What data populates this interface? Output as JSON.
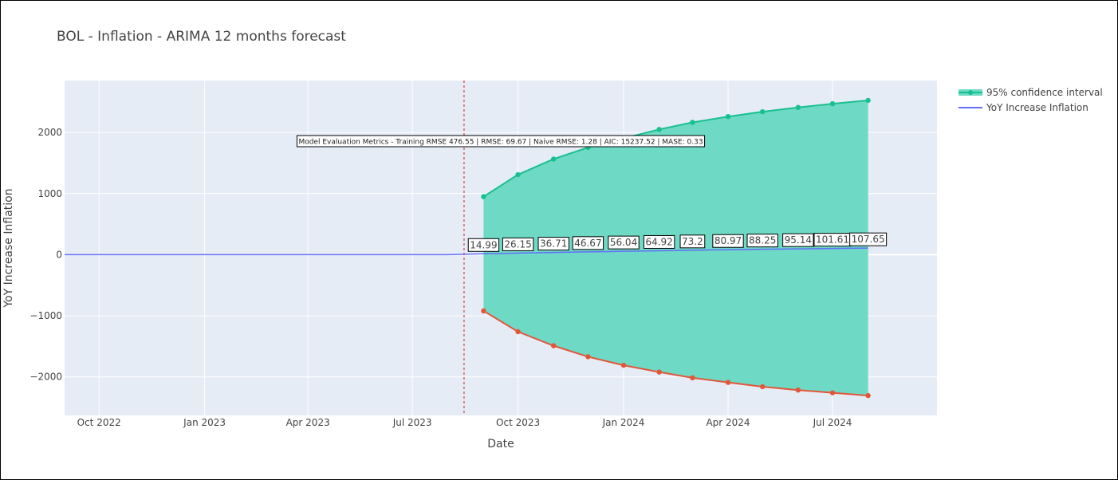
{
  "chart_data": {
    "type": "line",
    "title": "BOL - Inflation - ARIMA 12 months forecast",
    "xlabel": "Date",
    "ylabel": "YoY Increase Inflation",
    "xlim": [
      "2022-09-01",
      "2024-09-30"
    ],
    "ylim": [
      -2630,
      2850
    ],
    "x_ticks": [
      {
        "date": "2022-10-01",
        "label": "Oct 2022"
      },
      {
        "date": "2023-01-01",
        "label": "Jan 2023"
      },
      {
        "date": "2023-04-01",
        "label": "Apr 2023"
      },
      {
        "date": "2023-07-01",
        "label": "Jul 2023"
      },
      {
        "date": "2023-10-01",
        "label": "Oct 2023"
      },
      {
        "date": "2024-01-01",
        "label": "Jan 2024"
      },
      {
        "date": "2024-04-01",
        "label": "Apr 2024"
      },
      {
        "date": "2024-07-01",
        "label": "Jul 2024"
      }
    ],
    "y_ticks": [
      {
        "value": 2000,
        "label": "2000"
      },
      {
        "value": 1000,
        "label": "1000"
      },
      {
        "value": 0,
        "label": "0"
      },
      {
        "value": -1000,
        "label": "−1000"
      },
      {
        "value": -2000,
        "label": "−2000"
      }
    ],
    "grid": true,
    "legend_position": "top-right",
    "forecast_start_line": "2023-08-15",
    "metrics_annotation": "Model Evaluation Metrics - Training RMSE 476.55 | RMSE: 69.67 | Naive RMSE: 1.28 | AIC: 15237.52 | MASE: 0.33",
    "series": [
      {
        "name": "95% confidence interval",
        "kind": "band",
        "x": [
          "2023-09-01",
          "2023-10-01",
          "2023-11-01",
          "2023-12-01",
          "2024-01-01",
          "2024-02-01",
          "2024-03-01",
          "2024-04-01",
          "2024-05-01",
          "2024-06-01",
          "2024-07-01",
          "2024-08-01"
        ],
        "upper": [
          950,
          1310,
          1565,
          1755,
          1905,
          2050,
          2165,
          2260,
          2340,
          2410,
          2470,
          2525
        ],
        "lower": [
          -920,
          -1260,
          -1490,
          -1670,
          -1810,
          -1920,
          -2015,
          -2090,
          -2160,
          -2215,
          -2260,
          -2305
        ]
      },
      {
        "name": "YoY Increase Inflation",
        "kind": "line",
        "x": [
          "2022-09-01",
          "2022-10-01",
          "2022-11-01",
          "2022-12-01",
          "2023-01-01",
          "2023-02-01",
          "2023-03-01",
          "2023-04-01",
          "2023-05-01",
          "2023-06-01",
          "2023-07-01",
          "2023-08-01",
          "2023-09-01",
          "2023-10-01",
          "2023-11-01",
          "2023-12-01",
          "2024-01-01",
          "2024-02-01",
          "2024-03-01",
          "2024-04-01",
          "2024-05-01",
          "2024-06-01",
          "2024-07-01",
          "2024-08-01"
        ],
        "values": [
          0,
          0,
          0,
          0,
          0,
          0,
          0,
          0,
          0,
          0,
          0,
          0,
          14.99,
          26.15,
          36.71,
          46.67,
          56.04,
          64.92,
          73.2,
          80.97,
          88.25,
          95.14,
          101.61,
          107.65
        ],
        "labels": [
          "14.99",
          "26.15",
          "36.71",
          "46.67",
          "56.04",
          "64.92",
          "73.2",
          "80.97",
          "88.25",
          "95.14",
          "101.61",
          "107.65"
        ]
      }
    ],
    "colors": {
      "band_fill": "#6ed9c4",
      "upper_line": "#19c08f",
      "lower_line": "#e2573a",
      "line": "#636efa",
      "plot_bg": "#e5ecf6",
      "vline": "#e03a3a"
    }
  }
}
